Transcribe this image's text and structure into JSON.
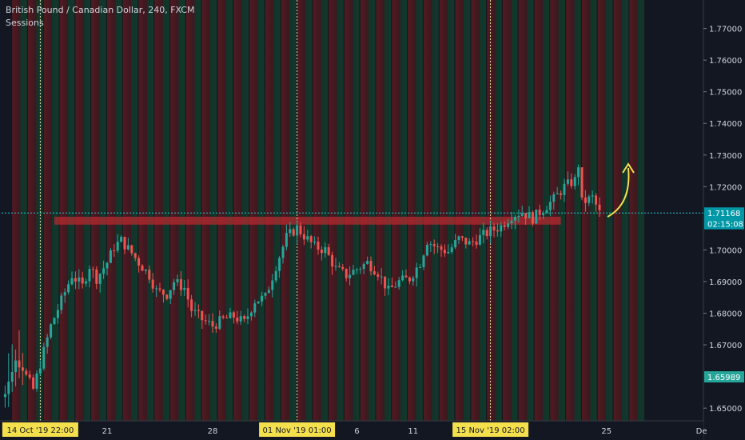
{
  "header": {
    "symbol_title": "British Pound / Canadian Dollar, 240, FXCM",
    "indicator": "Sessions"
  },
  "colors": {
    "background": "#131722",
    "up_candle": "#26a69a",
    "down_candle": "#ef5350",
    "session_red": "#5a1a1f",
    "session_green": "#123b2c",
    "zone": "#b32a30",
    "arrow": "#f4e04d",
    "current_price_line": "#26c6da",
    "axis_text": "#d1d4dc",
    "crosshair_label_bg": "#f4e04d"
  },
  "chart_data": {
    "type": "candlestick",
    "symbol": "GBPCAD",
    "timeframe": "240",
    "source": "FXCM",
    "ylim": [
      1.646,
      1.779
    ],
    "y_ticks": [
      "1.77000",
      "1.76000",
      "1.75000",
      "1.74000",
      "1.73000",
      "1.72000",
      "1.70000",
      "1.69000",
      "1.68000",
      "1.67000",
      "1.65000"
    ],
    "x_labels": [
      {
        "label": "21",
        "index": 29
      },
      {
        "label": "28",
        "index": 59
      },
      {
        "label": "6",
        "index": 100
      },
      {
        "label": "11",
        "index": 116
      },
      {
        "label": "25",
        "index": 171
      },
      {
        "label": "De",
        "index": 198
      }
    ],
    "crosshair_labels": [
      {
        "label": "14 Oct '19   22:00",
        "index": 10
      },
      {
        "label": "01 Nov '19   01:00",
        "index": 83
      },
      {
        "label": "15 Nov '19   02:00",
        "index": 138
      }
    ],
    "price_badges": [
      {
        "label": "1.71168",
        "value": 1.71168,
        "kind": "current"
      },
      {
        "label": "02:15:08",
        "value": 1.7083,
        "kind": "countdown"
      },
      {
        "label": "1.65989",
        "value": 1.65989,
        "kind": "marker"
      }
    ],
    "zone": {
      "y_top": 1.7105,
      "y_bottom": 1.708,
      "start_index": 14,
      "end_index": 158
    },
    "session_bands": {
      "first_index": 2,
      "step": 4.5,
      "count": 40
    },
    "close_path": [
      [
        0,
        1.6545
      ],
      [
        3,
        1.666
      ],
      [
        5,
        1.662
      ],
      [
        8,
        1.656
      ],
      [
        10,
        1.664
      ],
      [
        13,
        1.676
      ],
      [
        16,
        1.684
      ],
      [
        19,
        1.692
      ],
      [
        22,
        1.6885
      ],
      [
        24,
        1.695
      ],
      [
        26,
        1.691
      ],
      [
        29,
        1.696
      ],
      [
        31,
        1.701
      ],
      [
        33,
        1.703
      ],
      [
        36,
        1.699
      ],
      [
        38,
        1.696
      ],
      [
        41,
        1.692
      ],
      [
        43,
        1.687
      ],
      [
        46,
        1.686
      ],
      [
        48,
        1.69
      ],
      [
        51,
        1.688
      ],
      [
        53,
        1.681
      ],
      [
        56,
        1.678
      ],
      [
        59,
        1.676
      ],
      [
        62,
        1.678
      ],
      [
        65,
        1.679
      ],
      [
        68,
        1.677
      ],
      [
        71,
        1.684
      ],
      [
        74,
        1.685
      ],
      [
        77,
        1.695
      ],
      [
        80,
        1.704
      ],
      [
        83,
        1.707
      ],
      [
        85,
        1.7045
      ],
      [
        88,
        1.701
      ],
      [
        91,
        1.7
      ],
      [
        94,
        1.694
      ],
      [
        97,
        1.692
      ],
      [
        100,
        1.694
      ],
      [
        103,
        1.696
      ],
      [
        106,
        1.693
      ],
      [
        109,
        1.687
      ],
      [
        112,
        1.69
      ],
      [
        115,
        1.691
      ],
      [
        118,
        1.696
      ],
      [
        120,
        1.703
      ],
      [
        123,
        1.7005
      ],
      [
        126,
        1.6995
      ],
      [
        129,
        1.7035
      ],
      [
        132,
        1.702
      ],
      [
        135,
        1.704
      ],
      [
        138,
        1.706
      ],
      [
        141,
        1.7075
      ],
      [
        144,
        1.711
      ],
      [
        147,
        1.712
      ],
      [
        150,
        1.71
      ],
      [
        153,
        1.713
      ],
      [
        156,
        1.716
      ],
      [
        159,
        1.72
      ],
      [
        162,
        1.722
      ],
      [
        163,
        1.727
      ],
      [
        164,
        1.715
      ],
      [
        167,
        1.7165
      ],
      [
        169,
        1.7117
      ]
    ]
  }
}
